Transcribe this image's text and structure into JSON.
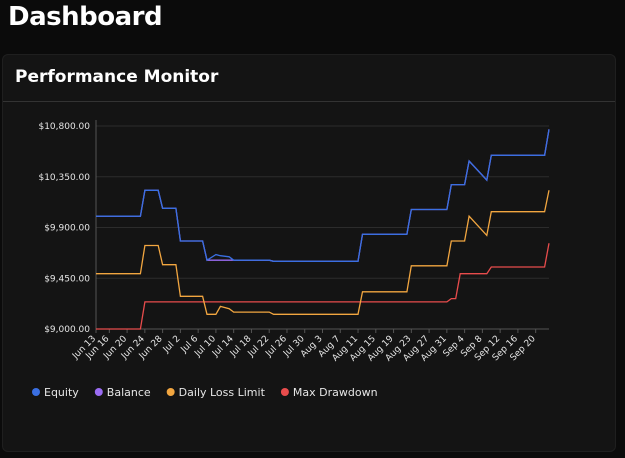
{
  "header": {
    "title": "Dashboard"
  },
  "panel": {
    "title": "Performance Monitor"
  },
  "chart_data": {
    "type": "line",
    "x": [
      "Jun 13",
      "Jun 23",
      "Jun 24",
      "Jun 27",
      "Jun 28",
      "Jul 1",
      "Jul 2",
      "Jul 7",
      "Jul 8",
      "Jul 10",
      "Jul 11",
      "Jul 13",
      "Jul 14",
      "Jul 22",
      "Jul 23",
      "Aug 11",
      "Aug 12",
      "Aug 22",
      "Aug 23",
      "Aug 31",
      "Sep 1",
      "Sep 2",
      "Sep 3",
      "Sep 4",
      "Sep 5",
      "Sep 9",
      "Sep 10",
      "Sep 22",
      "Sep 23"
    ],
    "series": [
      {
        "name": "Equity",
        "color": "#3a6fe2",
        "values": [
          10000,
          10000,
          10230,
          10230,
          10070,
          10070,
          9780,
          9780,
          9610,
          9660,
          9650,
          9640,
          9610,
          9610,
          9600,
          9600,
          9840,
          9840,
          10060,
          10060,
          10280,
          10280,
          10280,
          10280,
          10490,
          10320,
          10540,
          10540,
          10770
        ]
      },
      {
        "name": "Balance",
        "color": "#9b6cf3",
        "values": [
          10000,
          10000,
          10230,
          10230,
          10070,
          10070,
          9780,
          9780,
          9610,
          9610,
          9610,
          9610,
          9610,
          9610,
          9600,
          9600,
          9840,
          9840,
          10060,
          10060,
          10280,
          10280,
          10280,
          10280,
          10490,
          10320,
          10540,
          10540,
          10770
        ]
      },
      {
        "name": "Daily Loss Limit",
        "color": "#f2a640",
        "values": [
          9490,
          9490,
          9740,
          9740,
          9570,
          9570,
          9290,
          9290,
          9130,
          9130,
          9200,
          9180,
          9150,
          9150,
          9130,
          9130,
          9330,
          9330,
          9560,
          9560,
          9780,
          9780,
          9780,
          9780,
          10000,
          9830,
          10040,
          10040,
          10230
        ]
      },
      {
        "name": "Max Drawdown",
        "color": "#e84c4c",
        "values": [
          9000,
          9000,
          9240,
          9240,
          9240,
          9240,
          9240,
          9240,
          9240,
          9240,
          9240,
          9240,
          9240,
          9240,
          9240,
          9240,
          9240,
          9240,
          9240,
          9240,
          9270,
          9270,
          9490,
          9490,
          9490,
          9490,
          9550,
          9550,
          9760
        ]
      }
    ],
    "xlim": [
      "Jun 13",
      "Sep 23"
    ],
    "xticks": [
      "Jun 13",
      "Jun 16",
      "Jun 20",
      "Jun 24",
      "Jun 28",
      "Jul 2",
      "Jul 6",
      "Jul 10",
      "Jul 14",
      "Jul 18",
      "Jul 22",
      "Jul 26",
      "Jul 30",
      "Aug 3",
      "Aug 7",
      "Aug 11",
      "Aug 15",
      "Aug 19",
      "Aug 23",
      "Aug 27",
      "Aug 31",
      "Sep 4",
      "Sep 8",
      "Sep 12",
      "Sep 16",
      "Sep 20"
    ],
    "ylim": [
      9000,
      10800
    ],
    "yticks": [
      {
        "value": 9000,
        "label": "$9,000.00"
      },
      {
        "value": 9450,
        "label": "$9,450.00"
      },
      {
        "value": 9900,
        "label": "$9,900.00"
      },
      {
        "value": 10350,
        "label": "$10,350.00"
      },
      {
        "value": 10800,
        "label": "$10,800.00"
      }
    ],
    "grid": true
  }
}
